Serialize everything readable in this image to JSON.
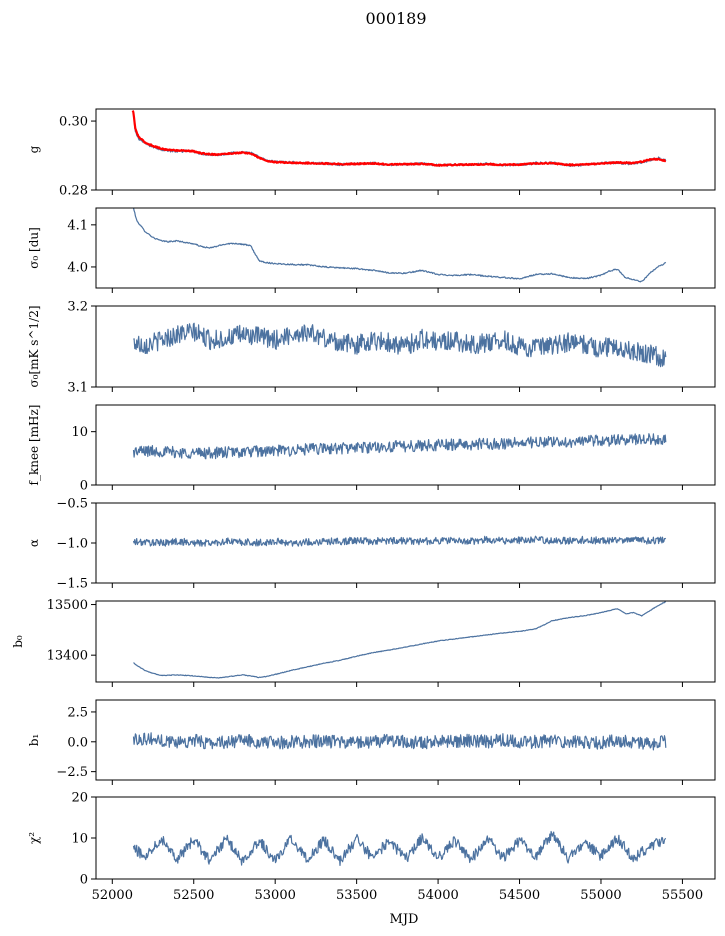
{
  "figure": {
    "title": "000189",
    "xlabel": "MJD"
  },
  "chart_data": [
    {
      "type": "line",
      "ylabel": "g",
      "ylim": [
        0.28,
        0.3035
      ],
      "yticks": [
        0.28,
        0.3
      ],
      "ytick_labels": [
        "0.28",
        "0.30"
      ],
      "xlim": [
        51900,
        55700
      ],
      "series": [
        {
          "color": "#4c72a0",
          "x": [
            52130,
            52140,
            52160,
            52200,
            52250,
            52300,
            52350,
            52400,
            52450,
            52500,
            52550,
            52600,
            52650,
            52700,
            52750,
            52800,
            52850,
            52900,
            52950,
            53000,
            53100,
            53200,
            53300,
            53400,
            53500,
            53600,
            53700,
            53800,
            53900,
            54000,
            54100,
            54200,
            54300,
            54400,
            54500,
            54600,
            54700,
            54800,
            54900,
            55000,
            55100,
            55200,
            55300,
            55350,
            55400
          ],
          "y": [
            0.302,
            0.297,
            0.295,
            0.2935,
            0.2925,
            0.2918,
            0.2914,
            0.2912,
            0.2913,
            0.2912,
            0.2905,
            0.2903,
            0.2902,
            0.2905,
            0.2908,
            0.291,
            0.2908,
            0.2895,
            0.2885,
            0.2882,
            0.288,
            0.2878,
            0.2877,
            0.2874,
            0.2876,
            0.2878,
            0.2873,
            0.2874,
            0.2877,
            0.2871,
            0.2873,
            0.2874,
            0.2876,
            0.2872,
            0.2873,
            0.2878,
            0.2879,
            0.2872,
            0.2872,
            0.2878,
            0.2879,
            0.2875,
            0.2887,
            0.2893,
            0.2885
          ]
        },
        {
          "color": "#ff0000",
          "x": [
            52125,
            52130,
            52140,
            52160,
            52200,
            52250,
            52300,
            52350,
            52400,
            52450,
            52500,
            52550,
            52600,
            52650,
            52700,
            52750,
            52800,
            52850,
            52900,
            52950,
            53000,
            53100,
            53200,
            53300,
            53400,
            53500,
            53600,
            53700,
            53800,
            53900,
            54000,
            54100,
            54200,
            54300,
            54400,
            54500,
            54600,
            54700,
            54800,
            54900,
            55000,
            55100,
            55200,
            55250,
            55300,
            55350,
            55400
          ],
          "y": [
            0.303,
            0.3025,
            0.298,
            0.2955,
            0.2938,
            0.2928,
            0.292,
            0.2916,
            0.2915,
            0.2914,
            0.2912,
            0.2906,
            0.2904,
            0.2903,
            0.2905,
            0.2907,
            0.2908,
            0.2906,
            0.2894,
            0.2884,
            0.2881,
            0.2879,
            0.2878,
            0.2877,
            0.2875,
            0.2876,
            0.2877,
            0.2874,
            0.2875,
            0.2876,
            0.2872,
            0.2873,
            0.2874,
            0.2875,
            0.2873,
            0.2874,
            0.2877,
            0.2878,
            0.2873,
            0.2874,
            0.2877,
            0.288,
            0.2878,
            0.2882,
            0.2888,
            0.289,
            0.2884
          ]
        }
      ]
    },
    {
      "type": "line",
      "ylabel": "σ₀ [du]",
      "ylim": [
        3.95,
        4.14
      ],
      "yticks": [
        4.0,
        4.1
      ],
      "ytick_labels": [
        "4.0",
        "4.1"
      ],
      "xlim": [
        51900,
        55700
      ],
      "series": [
        {
          "color": "#4c72a0",
          "x": [
            52130,
            52150,
            52200,
            52250,
            52300,
            52350,
            52400,
            52450,
            52500,
            52550,
            52600,
            52650,
            52700,
            52750,
            52800,
            52850,
            52900,
            52950,
            53000,
            53100,
            53200,
            53300,
            53400,
            53500,
            53600,
            53700,
            53800,
            53900,
            54000,
            54100,
            54200,
            54300,
            54400,
            54500,
            54600,
            54700,
            54800,
            54900,
            55000,
            55050,
            55100,
            55150,
            55200,
            55250,
            55300,
            55350,
            55400
          ],
          "y": [
            4.14,
            4.11,
            4.085,
            4.07,
            4.062,
            4.06,
            4.062,
            4.058,
            4.055,
            4.048,
            4.045,
            4.05,
            4.055,
            4.056,
            4.054,
            4.05,
            4.015,
            4.01,
            4.008,
            4.006,
            4.005,
            4.0,
            3.998,
            3.996,
            3.992,
            3.986,
            3.985,
            3.992,
            3.982,
            3.98,
            3.982,
            3.978,
            3.975,
            3.972,
            3.982,
            3.984,
            3.975,
            3.972,
            3.98,
            3.99,
            3.995,
            3.975,
            3.97,
            3.965,
            3.985,
            4.0,
            4.01
          ]
        }
      ]
    },
    {
      "type": "line",
      "ylabel": "σ₀[mK s^1/2]",
      "ylim": [
        3.1,
        3.2
      ],
      "yticks": [
        3.1,
        3.2
      ],
      "ytick_labels": [
        "3.1",
        "3.2"
      ],
      "xlim": [
        51900,
        55700
      ],
      "series": [
        {
          "color": "#4c72a0",
          "x": [
            52130,
            52200,
            52300,
            52400,
            52500,
            52600,
            52700,
            52800,
            52900,
            53000,
            53100,
            53200,
            53300,
            53400,
            53500,
            53600,
            53700,
            53800,
            53900,
            54000,
            54100,
            54200,
            54300,
            54400,
            54500,
            54600,
            54700,
            54800,
            54900,
            55000,
            55100,
            55200,
            55300,
            55400
          ],
          "y": [
            3.155,
            3.152,
            3.158,
            3.165,
            3.168,
            3.158,
            3.16,
            3.165,
            3.162,
            3.158,
            3.165,
            3.168,
            3.16,
            3.155,
            3.152,
            3.158,
            3.155,
            3.15,
            3.16,
            3.155,
            3.158,
            3.152,
            3.155,
            3.158,
            3.15,
            3.148,
            3.15,
            3.155,
            3.152,
            3.148,
            3.15,
            3.145,
            3.14,
            3.135
          ]
        }
      ]
    },
    {
      "type": "line",
      "ylabel": "f_knee [mHz]",
      "ylim": [
        0,
        15
      ],
      "yticks": [
        0,
        10
      ],
      "ytick_labels": [
        "0",
        "10"
      ],
      "xlim": [
        51900,
        55700
      ],
      "series": [
        {
          "color": "#4c72a0",
          "x": [
            52130,
            52200,
            52300,
            52400,
            52500,
            52600,
            52700,
            52800,
            52900,
            53000,
            53100,
            53200,
            53300,
            53400,
            53500,
            53600,
            53700,
            53800,
            53900,
            54000,
            54100,
            54200,
            54300,
            54400,
            54500,
            54600,
            54700,
            54800,
            54900,
            55000,
            55100,
            55200,
            55300,
            55400
          ],
          "y": [
            6.2,
            6.4,
            6.3,
            6.1,
            6.0,
            6.0,
            6.1,
            6.2,
            6.3,
            6.4,
            6.5,
            6.7,
            6.8,
            6.9,
            7.0,
            7.1,
            7.2,
            7.3,
            7.4,
            7.5,
            7.6,
            7.6,
            7.7,
            7.8,
            7.9,
            8.0,
            8.0,
            8.1,
            8.2,
            8.3,
            8.4,
            8.5,
            8.6,
            8.7
          ]
        }
      ]
    },
    {
      "type": "line",
      "ylabel": "α",
      "ylim": [
        -1.5,
        -0.5
      ],
      "yticks": [
        -1.5,
        -1.0,
        -0.5
      ],
      "ytick_labels": [
        "−1.5",
        "−1.0",
        "−0.5"
      ],
      "xlim": [
        51900,
        55700
      ],
      "series": [
        {
          "color": "#4c72a0",
          "x": [
            52130,
            52200,
            52300,
            52400,
            52500,
            52600,
            52700,
            52800,
            52900,
            53000,
            53100,
            53200,
            53300,
            53400,
            53500,
            53600,
            53700,
            53800,
            53900,
            54000,
            54100,
            54200,
            54300,
            54400,
            54500,
            54600,
            54700,
            54800,
            54900,
            55000,
            55100,
            55200,
            55300,
            55400
          ],
          "y": [
            -0.99,
            -0.99,
            -1.0,
            -0.98,
            -1.0,
            -1.0,
            -0.98,
            -0.99,
            -1.0,
            -0.98,
            -1.0,
            -0.99,
            -0.98,
            -0.98,
            -0.97,
            -0.98,
            -0.97,
            -0.97,
            -0.98,
            -0.97,
            -0.97,
            -0.98,
            -0.96,
            -0.97,
            -0.97,
            -0.96,
            -0.97,
            -0.97,
            -0.96,
            -0.97,
            -0.97,
            -0.96,
            -0.97,
            -0.97
          ]
        }
      ]
    },
    {
      "type": "line",
      "ylabel": "b₀",
      "ylim": [
        13347,
        13507
      ],
      "yticks": [
        13400,
        13500
      ],
      "ytick_labels": [
        "13400",
        "13500"
      ],
      "xlim": [
        51900,
        55700
      ],
      "series": [
        {
          "color": "#4c72a0",
          "x": [
            52130,
            52150,
            52200,
            52250,
            52300,
            52400,
            52500,
            52600,
            52650,
            52700,
            52750,
            52800,
            52850,
            52900,
            52950,
            53000,
            53100,
            53200,
            53300,
            53400,
            53500,
            53600,
            53700,
            53800,
            53900,
            54000,
            54100,
            54200,
            54300,
            54400,
            54500,
            54600,
            54700,
            54800,
            54900,
            55000,
            55050,
            55100,
            55150,
            55200,
            55250,
            55300,
            55350,
            55400
          ],
          "y": [
            13385,
            13380,
            13370,
            13364,
            13360,
            13361,
            13359,
            13356,
            13355,
            13357,
            13359,
            13361,
            13359,
            13356,
            13358,
            13362,
            13370,
            13377,
            13384,
            13390,
            13398,
            13405,
            13410,
            13416,
            13422,
            13428,
            13432,
            13436,
            13440,
            13444,
            13447,
            13452,
            13468,
            13474,
            13478,
            13484,
            13488,
            13492,
            13482,
            13484,
            13478,
            13488,
            13498,
            13506
          ]
        }
      ]
    },
    {
      "type": "line",
      "ylabel": "b₁",
      "ylim": [
        -3.2,
        3.5
      ],
      "yticks": [
        -2.5,
        0.0,
        2.5
      ],
      "ytick_labels": [
        "−2.5",
        "0.0",
        "2.5"
      ],
      "xlim": [
        51900,
        55700
      ],
      "series": [
        {
          "color": "#4c72a0",
          "x": [
            52130,
            52200,
            52300,
            52400,
            52500,
            52600,
            52700,
            52800,
            52900,
            53000,
            53100,
            53200,
            53300,
            53400,
            53500,
            53600,
            53700,
            53800,
            53900,
            54000,
            54100,
            54200,
            54300,
            54400,
            54500,
            54600,
            54700,
            54800,
            54900,
            55000,
            55100,
            55200,
            55300,
            55400
          ],
          "y": [
            0.2,
            0.3,
            0.1,
            0.0,
            0.1,
            -0.1,
            0.0,
            0.1,
            0.0,
            -0.1,
            0.0,
            0.0,
            0.1,
            -0.1,
            0.0,
            0.0,
            0.1,
            0.0,
            -0.1,
            0.0,
            0.0,
            0.1,
            0.0,
            0.2,
            -0.1,
            0.0,
            0.1,
            0.0,
            0.0,
            -0.1,
            0.1,
            0.0,
            -0.2,
            0.0
          ]
        }
      ]
    },
    {
      "type": "line",
      "ylabel": "χ²",
      "ylim": [
        0,
        20
      ],
      "yticks": [
        0,
        10,
        20
      ],
      "ytick_labels": [
        "0",
        "10",
        "20"
      ],
      "xticks": [
        52000,
        52500,
        53000,
        53500,
        54000,
        54500,
        55000,
        55500
      ],
      "xtick_labels": [
        "52000",
        "52500",
        "53000",
        "53500",
        "54000",
        "54500",
        "55000",
        "55500"
      ],
      "xlim": [
        51900,
        55700
      ],
      "series": [
        {
          "color": "#4c72a0",
          "x": [
            52130,
            52200,
            52300,
            52400,
            52500,
            52600,
            52700,
            52800,
            52900,
            53000,
            53100,
            53200,
            53300,
            53400,
            53500,
            53600,
            53700,
            53800,
            53900,
            54000,
            54100,
            54200,
            54300,
            54400,
            54500,
            54600,
            54700,
            54800,
            54900,
            55000,
            55100,
            55200,
            55300,
            55400
          ],
          "y": [
            7.5,
            5.5,
            10.0,
            5.0,
            9.5,
            4.5,
            9.8,
            4.2,
            9.5,
            4.5,
            9.8,
            4.8,
            9.5,
            4.5,
            9.8,
            5.0,
            9.5,
            4.8,
            10.0,
            5.0,
            9.5,
            4.5,
            10.0,
            5.2,
            9.5,
            5.5,
            11.0,
            5.0,
            9.0,
            5.5,
            10.0,
            5.0,
            8.0,
            9.5
          ]
        }
      ]
    }
  ]
}
